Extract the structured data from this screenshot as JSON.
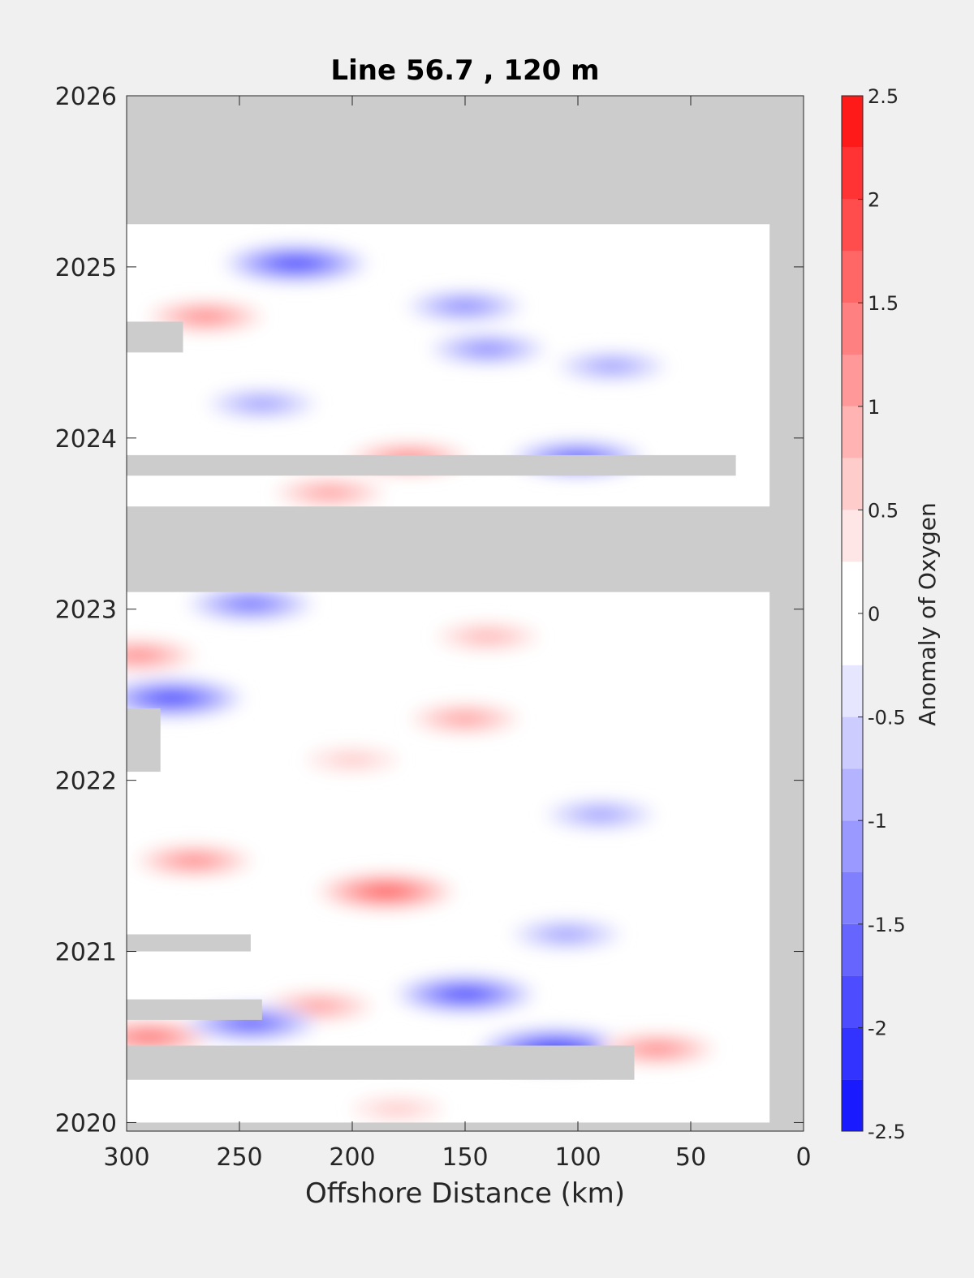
{
  "chart_data": {
    "type": "heatmap",
    "title": "Line 56.7 , 120 m",
    "xlabel": "Offshore Distance (km)",
    "ylabel": "",
    "xlim": [
      300,
      0
    ],
    "x_reversed": true,
    "xticks": [
      300,
      250,
      200,
      150,
      100,
      50,
      0
    ],
    "ylim": [
      2019.95,
      2026
    ],
    "yticks": [
      2020,
      2021,
      2022,
      2023,
      2024,
      2025,
      2026
    ],
    "colorbar": {
      "label": "Anomaly of Oxygen",
      "range": [
        -2.5,
        2.5
      ],
      "ticks": [
        -2.5,
        -2,
        -1.5,
        -1,
        -0.5,
        0,
        0.5,
        1,
        1.5,
        2,
        2.5
      ],
      "tick_labels": [
        "-2.5",
        "-2",
        "-1.5",
        "-1",
        "-0.5",
        "0",
        "0.5",
        "1",
        "1.5",
        "2",
        "2.5"
      ],
      "level_step": 0.25,
      "low_color": "#0000ff",
      "high_color": "#ff0000",
      "mid_color": "#ffffff"
    },
    "missing_color": "#cccccc",
    "data_extent": {
      "time": [
        2020.0,
        2025.25
      ],
      "offshore_km": [
        15,
        300
      ]
    },
    "missing_periods": [
      {
        "time": [
          2025.25,
          2026.0
        ],
        "offshore_km": [
          0,
          300
        ]
      },
      {
        "time": [
          2023.1,
          2023.6
        ],
        "offshore_km": [
          0,
          300
        ]
      },
      {
        "time": [
          2023.78,
          2023.9
        ],
        "offshore_km": [
          30,
          300
        ]
      },
      {
        "time": [
          2020.25,
          2020.45
        ],
        "offshore_km": [
          75,
          300
        ]
      },
      {
        "time": [
          2020.6,
          2020.72
        ],
        "offshore_km": [
          240,
          300
        ]
      },
      {
        "time": [
          2021.0,
          2021.1
        ],
        "offshore_km": [
          245,
          300
        ]
      },
      {
        "time": [
          2022.05,
          2022.42
        ],
        "offshore_km": [
          285,
          300
        ]
      },
      {
        "time": [
          2024.5,
          2024.68
        ],
        "offshore_km": [
          275,
          300
        ]
      }
    ],
    "anomaly_features": [
      {
        "x": 225,
        "t": 2025.02,
        "value": -2.0
      },
      {
        "x": 150,
        "t": 2024.77,
        "value": -1.2
      },
      {
        "x": 265,
        "t": 2024.71,
        "value": 1.2
      },
      {
        "x": 140,
        "t": 2024.52,
        "value": -1.2
      },
      {
        "x": 85,
        "t": 2024.42,
        "value": -1.0
      },
      {
        "x": 240,
        "t": 2024.2,
        "value": -1.0
      },
      {
        "x": 175,
        "t": 2023.88,
        "value": 1.3
      },
      {
        "x": 100,
        "t": 2023.88,
        "value": -1.7
      },
      {
        "x": 210,
        "t": 2023.68,
        "value": 1.0
      },
      {
        "x": 245,
        "t": 2023.03,
        "value": -1.5
      },
      {
        "x": 140,
        "t": 2022.84,
        "value": 0.8
      },
      {
        "x": 295,
        "t": 2022.73,
        "value": 1.2
      },
      {
        "x": 280,
        "t": 2022.48,
        "value": -2.0
      },
      {
        "x": 150,
        "t": 2022.36,
        "value": 1.0
      },
      {
        "x": 200,
        "t": 2022.12,
        "value": 0.5
      },
      {
        "x": 90,
        "t": 2021.8,
        "value": -1.0
      },
      {
        "x": 270,
        "t": 2021.53,
        "value": 1.2
      },
      {
        "x": 185,
        "t": 2021.35,
        "value": 1.8
      },
      {
        "x": 105,
        "t": 2021.1,
        "value": -1.0
      },
      {
        "x": 150,
        "t": 2020.75,
        "value": -1.9
      },
      {
        "x": 215,
        "t": 2020.68,
        "value": 1.0
      },
      {
        "x": 110,
        "t": 2020.43,
        "value": -2.3
      },
      {
        "x": 290,
        "t": 2020.5,
        "value": 1.5
      },
      {
        "x": 65,
        "t": 2020.43,
        "value": 1.2
      },
      {
        "x": 245,
        "t": 2020.58,
        "value": -1.7
      },
      {
        "x": 180,
        "t": 2020.08,
        "value": 0.5
      }
    ]
  }
}
